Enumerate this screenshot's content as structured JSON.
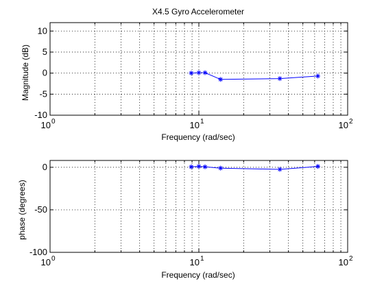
{
  "chart_data": [
    {
      "type": "line",
      "title": "X4.5 Gyro Accelerometer",
      "xlabel": "Frequency (rad/sec)",
      "ylabel": "Magnitude (dB)",
      "xscale": "log",
      "xlim": [
        1,
        100
      ],
      "ylim": [
        -10,
        12
      ],
      "grid": true,
      "x_ticks": [
        {
          "value": 1,
          "base": "10",
          "exp": "0"
        },
        {
          "value": 10,
          "base": "10",
          "exp": "1"
        },
        {
          "value": 100,
          "base": "10",
          "exp": "2"
        }
      ],
      "y_ticks": [
        {
          "value": 10,
          "label": "10"
        },
        {
          "value": 5,
          "label": "5"
        },
        {
          "value": 0,
          "label": "0"
        },
        {
          "value": -5,
          "label": "-5"
        },
        {
          "value": -10,
          "label": "-10"
        }
      ],
      "y_grid": [
        -10,
        -5,
        0,
        5,
        10
      ],
      "color": "#0000ff",
      "marker": "asterisk",
      "x": [
        8.9,
        10.0,
        11.0,
        14.0,
        35.0,
        63.0
      ],
      "y": [
        0.0,
        0.1,
        0.1,
        -1.5,
        -1.3,
        -0.7
      ]
    },
    {
      "type": "line",
      "title": "",
      "xlabel": "Frequency (rad/sec)",
      "ylabel": "phase (degrees)",
      "xscale": "log",
      "xlim": [
        1,
        100
      ],
      "ylim": [
        -100,
        8
      ],
      "grid": true,
      "x_ticks": [
        {
          "value": 1,
          "base": "10",
          "exp": "0"
        },
        {
          "value": 10,
          "base": "10",
          "exp": "1"
        },
        {
          "value": 100,
          "base": "10",
          "exp": "2"
        }
      ],
      "y_ticks": [
        {
          "value": 0,
          "label": "0"
        },
        {
          "value": -50,
          "label": "-50"
        },
        {
          "value": -100,
          "label": "-100"
        }
      ],
      "y_grid": [
        -100,
        -50,
        0
      ],
      "color": "#0000ff",
      "marker": "asterisk",
      "x": [
        8.9,
        10.0,
        11.0,
        14.0,
        35.0,
        63.0
      ],
      "y": [
        0.5,
        1.0,
        0.5,
        -1.0,
        -2.5,
        1.0
      ]
    }
  ]
}
